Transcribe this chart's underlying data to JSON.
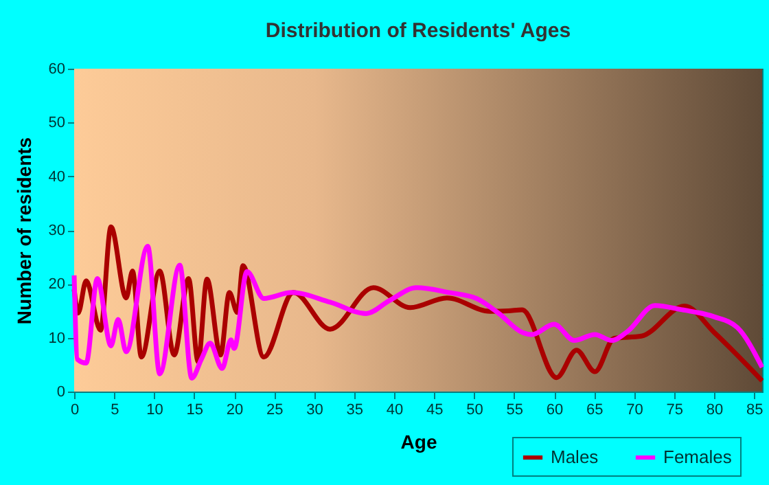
{
  "chart_data": {
    "type": "line",
    "title": "Distribution of Residents' Ages",
    "xlabel": "Age",
    "ylabel": "Number of residents",
    "xlim": [
      0,
      86
    ],
    "ylim": [
      0,
      60
    ],
    "xticks": [
      0,
      5,
      10,
      15,
      20,
      25,
      30,
      35,
      40,
      45,
      50,
      55,
      60,
      65,
      70,
      75,
      80,
      85
    ],
    "yticks": [
      0,
      10,
      20,
      30,
      40,
      50,
      60
    ],
    "grid": true,
    "legend": "bottom right",
    "marker": "none",
    "line_style": "solid",
    "series": [
      {
        "name": "Males",
        "color": "#aa0000",
        "x": [
          0,
          0.5,
          1.5,
          3.3,
          4.6,
          6.5,
          7.3,
          8.4,
          10.7,
          12.5,
          14.3,
          15.5,
          16.6,
          18.3,
          19.4,
          20.4,
          21.1,
          23.7,
          27.4,
          32,
          37.4,
          42,
          46.6,
          52,
          54.3,
          56,
          60.3,
          62.8,
          65.1,
          67.5,
          70.9,
          76.3,
          80,
          86
        ],
        "values": [
          19,
          14.6,
          20.6,
          11.4,
          30.6,
          17.4,
          22.4,
          6.4,
          22.4,
          6.8,
          21,
          5.5,
          20.9,
          6.8,
          18.4,
          14.7,
          23.4,
          6.4,
          18.4,
          11.6,
          19.3,
          15.6,
          17.4,
          14.9,
          15,
          15.2,
          2.6,
          7.7,
          3.7,
          9.9,
          10.3,
          15.9,
          11,
          2
        ]
      },
      {
        "name": "Females",
        "color": "#ff00ff",
        "x": [
          0,
          0.4,
          1.5,
          2.9,
          4.6,
          5.5,
          6.5,
          9.2,
          10.7,
          13.2,
          14.7,
          15.9,
          17,
          18.5,
          19.6,
          20,
          21.6,
          23.7,
          27.2,
          32,
          36.5,
          39.4,
          42.8,
          46.9,
          50.3,
          53.1,
          56,
          57.2,
          60,
          62.5,
          65.1,
          67.2,
          69.2,
          72.6,
          76,
          80,
          82.9,
          86
        ],
        "values": [
          21.6,
          6,
          5.3,
          21,
          8.5,
          13.4,
          7.4,
          27,
          3.3,
          23.5,
          2.5,
          6,
          9,
          4.3,
          9.6,
          8,
          22.3,
          17.3,
          18.4,
          16.6,
          14.5,
          16.9,
          19.3,
          18.4,
          17.3,
          14.5,
          11,
          10.6,
          12.5,
          9.5,
          10.6,
          9.5,
          11.2,
          16,
          15.2,
          13.9,
          11.9,
          4.5
        ]
      }
    ]
  }
}
